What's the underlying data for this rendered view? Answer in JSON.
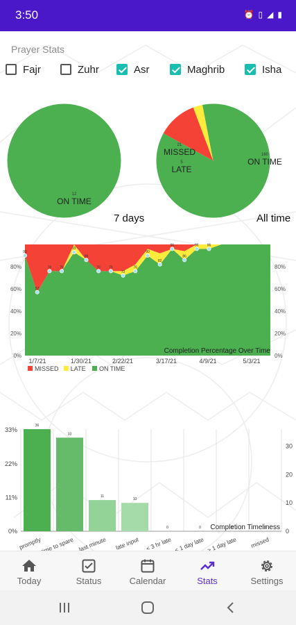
{
  "status_bar": {
    "time": "3:50",
    "icons": [
      "alarm-icon",
      "sim-icon",
      "signal-icon",
      "battery-icon"
    ]
  },
  "page_title": "Prayer Stats",
  "filters": [
    {
      "label": "Fajr",
      "checked": false
    },
    {
      "label": "Zuhr",
      "checked": false
    },
    {
      "label": "Asr",
      "checked": true
    },
    {
      "label": "Maghrib",
      "checked": true
    },
    {
      "label": "Isha",
      "checked": true
    }
  ],
  "colors": {
    "missed": "#f44336",
    "late": "#ffeb3b",
    "on_time": "#4caf50",
    "accent": "#5b2cd6",
    "checkbox": "#18bfb0",
    "status_bar": "#4a18c8"
  },
  "pies": [
    {
      "caption": "7 days",
      "slices": [
        {
          "label": "ON TIME",
          "value": 12
        }
      ]
    },
    {
      "caption": "All time",
      "slices": [
        {
          "label": "MISSED",
          "value": 21
        },
        {
          "label": "LATE",
          "value": 5
        },
        {
          "label": "ON TIME",
          "value": 160
        }
      ]
    }
  ],
  "chart_data": [
    {
      "type": "area",
      "title": "Completion Percentage Over Time",
      "x_ticks": [
        "1/7/21",
        "1/30/21",
        "2/22/21",
        "3/17/21",
        "4/9/21",
        "5/3/21"
      ],
      "y_ticks": [
        "0%",
        "20%",
        "40%",
        "60%",
        "80%"
      ],
      "ylim": [
        0,
        100
      ],
      "stacking": "percent",
      "legend": {
        "position": "bottom-left",
        "entries": [
          "MISSED",
          "LATE",
          "ON TIME"
        ]
      },
      "series": [
        {
          "name": "ON TIME",
          "values": [
            90,
            57,
            76,
            76,
            93,
            86,
            76,
            76,
            72,
            76,
            90,
            82,
            96,
            86,
            96,
            96,
            100,
            100,
            100,
            100,
            100
          ]
        },
        {
          "name": "LATE",
          "values": [
            0,
            0,
            0,
            0,
            7,
            0,
            0,
            0,
            4,
            6,
            6,
            10,
            0,
            8,
            4,
            4,
            0,
            0,
            0,
            0,
            0
          ]
        },
        {
          "name": "MISSED",
          "values": [
            10,
            43,
            24,
            24,
            0,
            14,
            24,
            24,
            24,
            18,
            4,
            8,
            4,
            6,
            0,
            0,
            0,
            0,
            0,
            0,
            0
          ]
        }
      ],
      "point_labels": [
        "90",
        "57",
        "76",
        "76",
        "93",
        "86",
        "76",
        "76",
        "72",
        "76",
        "90",
        "82",
        "96",
        "86",
        "96",
        "96"
      ]
    },
    {
      "type": "bar",
      "title": "Completion Timeliness",
      "categories": [
        "promptly",
        "time to spare",
        "last minute",
        "late input",
        "< 3 hr late",
        "< 1 day late",
        "> 1 day late",
        "missed"
      ],
      "values": [
        36,
        33,
        11,
        10,
        0,
        0,
        0,
        0
      ],
      "left_ticks": [
        "0%",
        "11%",
        "22%",
        "33%"
      ],
      "right_ticks": [
        "0",
        "10",
        "20",
        "30"
      ],
      "ylim": [
        0,
        36
      ]
    }
  ],
  "nav": {
    "items": [
      {
        "label": "Today",
        "icon": "home-icon",
        "active": false
      },
      {
        "label": "Status",
        "icon": "checkbox-icon",
        "active": false
      },
      {
        "label": "Calendar",
        "icon": "calendar-icon",
        "active": false
      },
      {
        "label": "Stats",
        "icon": "trending-icon",
        "active": true
      },
      {
        "label": "Settings",
        "icon": "gear-icon",
        "active": false
      }
    ]
  },
  "system_nav": [
    "recents-icon",
    "home-button-icon",
    "back-icon"
  ]
}
